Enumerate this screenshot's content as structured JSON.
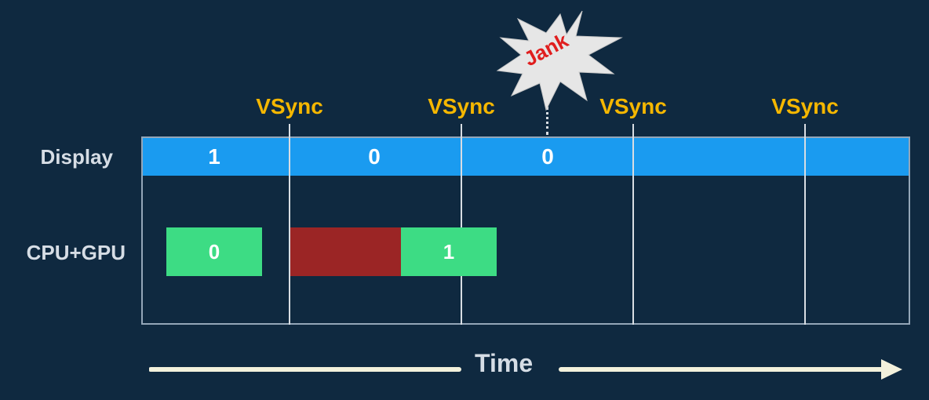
{
  "diagram": {
    "rows": {
      "display": "Display",
      "cpu_gpu": "CPU+GPU"
    },
    "vsync_labels": [
      "VSync",
      "VSync",
      "VSync",
      "VSync"
    ],
    "display_frames": [
      "1",
      "0",
      "0"
    ],
    "cpu_gpu_frames": [
      "0",
      "1"
    ],
    "jank_label": "Jank",
    "time_label": "Time",
    "colors": {
      "background": "#0f2940",
      "display_bar": "#1a9bf0",
      "cpu_frame": "#3ddc84",
      "delay_block": "#9b2525",
      "vsync": "#f5b700",
      "jank_text": "#e01e1e",
      "burst": "#e6e6e6"
    }
  }
}
